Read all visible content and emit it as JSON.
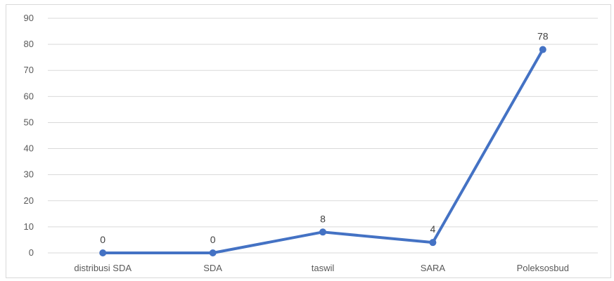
{
  "chart_data": {
    "type": "line",
    "title": "",
    "xlabel": "",
    "ylabel": "",
    "categories": [
      "distribusi SDA",
      "SDA",
      "taswil",
      "SARA",
      "Poleksosbud"
    ],
    "series": [
      {
        "values": [
          0,
          0,
          8,
          4,
          78
        ],
        "color": "#4472c4"
      }
    ],
    "ylim": [
      0,
      90
    ],
    "yticks": [
      0,
      10,
      20,
      30,
      40,
      50,
      60,
      70,
      80,
      90
    ],
    "grid": true,
    "data_labels": true,
    "legend": "none"
  }
}
